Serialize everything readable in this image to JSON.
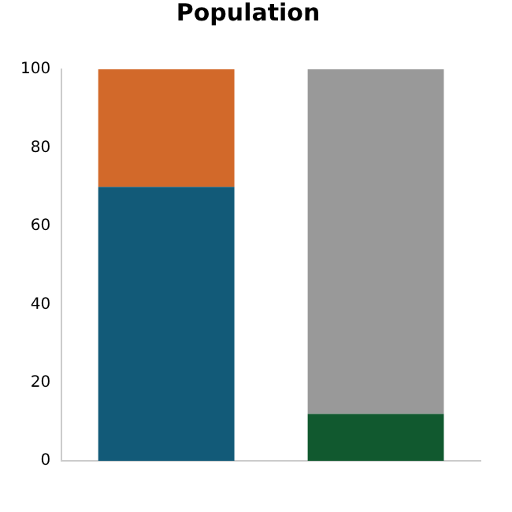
{
  "chart_data": {
    "type": "bar",
    "title": "Population",
    "stacked": true,
    "categories": [
      null,
      null
    ],
    "series": [
      {
        "colors": [
          "#125a78",
          "#11592f"
        ],
        "values": [
          70,
          12
        ]
      },
      {
        "colors": [
          "#d2692a",
          "#999999"
        ],
        "values": [
          30,
          88
        ]
      }
    ],
    "ylim": [
      0,
      100
    ],
    "yticks": [
      0,
      20,
      40,
      60,
      80,
      100
    ],
    "grid": false,
    "legend": false
  }
}
